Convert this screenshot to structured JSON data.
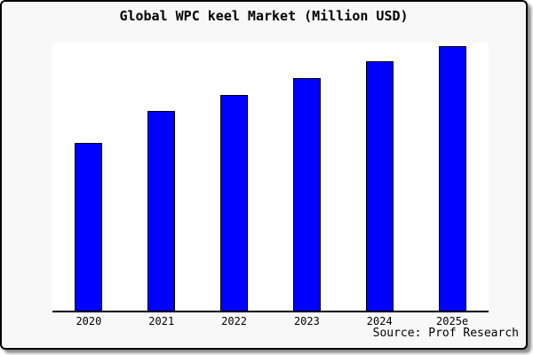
{
  "frame": {
    "background": "#f8f8f8",
    "border_color": "#000000"
  },
  "chart_data": {
    "type": "bar",
    "title": "Global WPC keel Market (Million USD)",
    "categories": [
      "2020",
      "2021",
      "2022",
      "2023",
      "2024",
      "2025e"
    ],
    "values": [
      100,
      119,
      129,
      139,
      149,
      158
    ],
    "value_note": "y-axis has no ticks or labels; values are relative estimates from bar heights scaled to 2020 = 100",
    "xlabel": "",
    "ylabel": "",
    "ylim": [
      0,
      160
    ],
    "grid": false,
    "legend_position": "none",
    "bar_color": "#0000ff",
    "bar_border_color": "#000000",
    "plot_background": "#ffffff"
  },
  "source": {
    "label": "Source: Prof Research"
  }
}
